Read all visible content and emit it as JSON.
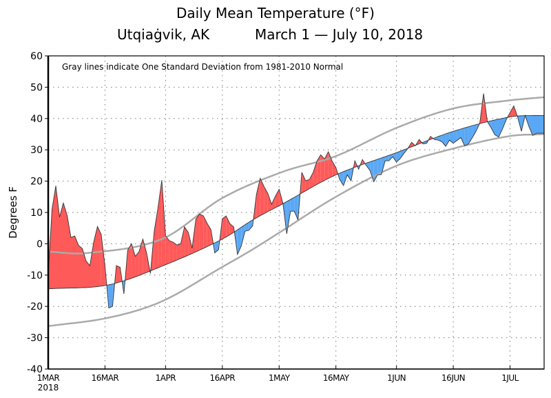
{
  "chart_data": {
    "type": "area",
    "title": "Daily Mean Temperature (°F)",
    "subtitle_location": "Utqiaġvik, AK",
    "subtitle_dates": "March 1 — July 10, 2018",
    "annotation": "Gray lines indicate One Standard Deviation from 1981-2010 Normal",
    "ylabel": "Degrees F",
    "ylim": [
      -40,
      60
    ],
    "yticks": [
      -40,
      -30,
      -20,
      -10,
      0,
      10,
      20,
      30,
      40,
      50,
      60
    ],
    "x_start": "2018-03-01",
    "x_end": "2018-07-10",
    "xtick_labels": [
      {
        "date": "2018-03-01",
        "label": "1MAR",
        "sublabel": "2018"
      },
      {
        "date": "2018-03-16",
        "label": "16MAR"
      },
      {
        "date": "2018-04-01",
        "label": "1APR"
      },
      {
        "date": "2018-04-16",
        "label": "16APR"
      },
      {
        "date": "2018-05-01",
        "label": "1MAY"
      },
      {
        "date": "2018-05-16",
        "label": "16MAY"
      },
      {
        "date": "2018-06-01",
        "label": "1JUN"
      },
      {
        "date": "2018-06-16",
        "label": "16JUN"
      },
      {
        "date": "2018-07-01",
        "label": "1JUL"
      }
    ],
    "grid": true,
    "colors": {
      "above_normal": "#ff5a5a",
      "below_normal": "#5aa8f5",
      "std_lines": "#aaaaaa",
      "line": "#333333"
    },
    "daily_mean": [
      -10,
      11,
      18.5,
      8.5,
      13,
      9,
      2,
      2.5,
      -0.5,
      -1.5,
      -5.5,
      -7,
      0.5,
      5.5,
      3,
      -7,
      -20.5,
      -20,
      -7,
      -7.5,
      -16,
      -2,
      0,
      -4,
      -2.5,
      1.5,
      -3,
      -9.5,
      4,
      11.5,
      20.3,
      2.5,
      1,
      0.5,
      -0.4,
      0,
      5.4,
      3.6,
      -1.4,
      7.9,
      9.5,
      8.9,
      6.5,
      4.5,
      -2.9,
      -1.9,
      8,
      8.9,
      6.4,
      5.4,
      -3.4,
      -0.7,
      4,
      4.3,
      5.7,
      15.7,
      20.9,
      18.3,
      16.1,
      12.6,
      15.2,
      17.4,
      12.9,
      3.2,
      10.4,
      10.4,
      7.6,
      22.8,
      20.1,
      20.5,
      22.8,
      26.4,
      28.4,
      27.1,
      29.4,
      26.4,
      24.3,
      20.5,
      18.6,
      22,
      20.1,
      26.5,
      23.8,
      26.9,
      25,
      23.4,
      19.8,
      22,
      22.1,
      26.5,
      26.5,
      27.8,
      26.1,
      27.2,
      28.9,
      30.4,
      32.4,
      31.3,
      33.3,
      31.9,
      32.1,
      34.3,
      33.3,
      33.1,
      32.6,
      31.1,
      33.1,
      32.1,
      33,
      33.9,
      31.3,
      31.9,
      33.8,
      35.9,
      38.5,
      48,
      39,
      37,
      34.8,
      34.1,
      36.6,
      39.6,
      41.9,
      44,
      40.5,
      35.9,
      41,
      37.4,
      34.6,
      35.3,
      35.3,
      35.3
    ],
    "normal": [
      {
        "date": "2018-03-01",
        "value": -14.4
      },
      {
        "date": "2018-03-17",
        "value": -13.1
      },
      {
        "date": "2018-04-01",
        "value": -6.7
      },
      {
        "date": "2018-04-16",
        "value": 1.5
      },
      {
        "date": "2018-04-24",
        "value": 7.6
      },
      {
        "date": "2018-05-02",
        "value": 12.8
      },
      {
        "date": "2018-05-16",
        "value": 22
      },
      {
        "date": "2018-06-01",
        "value": 29.1
      },
      {
        "date": "2018-06-16",
        "value": 35.9
      },
      {
        "date": "2018-07-01",
        "value": 40.5
      },
      {
        "date": "2018-07-10",
        "value": 41
      }
    ],
    "upper_std": [
      {
        "date": "2018-03-01",
        "value": -2.5
      },
      {
        "date": "2018-03-11",
        "value": -3
      },
      {
        "date": "2018-03-31",
        "value": 1.5
      },
      {
        "date": "2018-04-16",
        "value": 14.6
      },
      {
        "date": "2018-05-02",
        "value": 23
      },
      {
        "date": "2018-05-16",
        "value": 28
      },
      {
        "date": "2018-06-01",
        "value": 37
      },
      {
        "date": "2018-06-16",
        "value": 43.2
      },
      {
        "date": "2018-07-01",
        "value": 45.8
      },
      {
        "date": "2018-07-10",
        "value": 46.8
      }
    ],
    "lower_std": [
      {
        "date": "2018-03-01",
        "value": -26.3
      },
      {
        "date": "2018-03-17",
        "value": -23.6
      },
      {
        "date": "2018-03-31",
        "value": -18.4
      },
      {
        "date": "2018-04-16",
        "value": -7.4
      },
      {
        "date": "2018-04-24",
        "value": -1.8
      },
      {
        "date": "2018-05-02",
        "value": 4.3
      },
      {
        "date": "2018-05-16",
        "value": 15
      },
      {
        "date": "2018-06-01",
        "value": 24.9
      },
      {
        "date": "2018-06-16",
        "value": 30.4
      },
      {
        "date": "2018-07-01",
        "value": 34.4
      },
      {
        "date": "2018-07-10",
        "value": 35
      }
    ]
  }
}
